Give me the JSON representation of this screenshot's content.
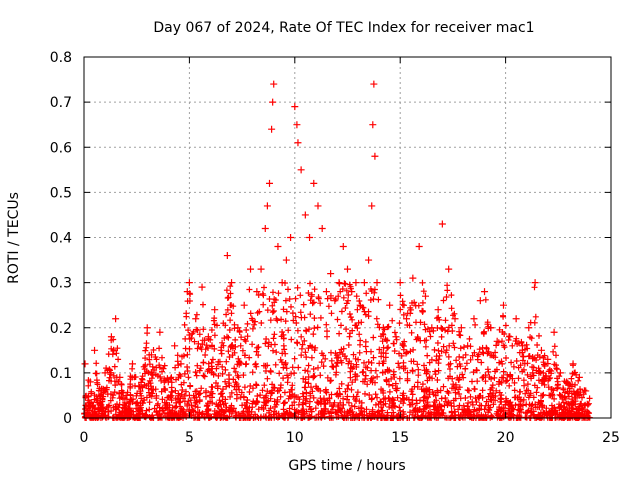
{
  "chart_data": {
    "type": "scatter",
    "title": "Day 067 of 2024, Rate Of TEC Index for receiver mac1",
    "xlabel": "GPS time / hours",
    "ylabel": "ROTI / TECUs",
    "xlim": [
      0,
      25
    ],
    "ylim": [
      0,
      0.8
    ],
    "xticks": [
      0,
      5,
      10,
      15,
      20,
      25
    ],
    "yticks": [
      0,
      0.1,
      0.2,
      0.3,
      0.4,
      0.5,
      0.6,
      0.7,
      0.8
    ],
    "xtick_labels": [
      "0",
      "5",
      "10",
      "15",
      "20",
      "25"
    ],
    "ytick_labels": [
      "0",
      "0.1",
      "0.2",
      "0.3",
      "0.4",
      "0.5",
      "0.6",
      "0.7",
      "0.8"
    ],
    "grid": true,
    "marker": "+",
    "color": "#ff0000",
    "x_range_of_data": [
      0,
      24
    ],
    "series": [
      {
        "name": "ROTI",
        "points": [
          [
            0.05,
            0.12
          ],
          [
            0.3,
            0.08
          ],
          [
            0.5,
            0.15
          ],
          [
            0.8,
            0.06
          ],
          [
            1.0,
            0.1
          ],
          [
            1.3,
            0.18
          ],
          [
            1.5,
            0.22
          ],
          [
            1.7,
            0.09
          ],
          [
            2.0,
            0.05
          ],
          [
            2.3,
            0.12
          ],
          [
            2.6,
            0.07
          ],
          [
            3.0,
            0.2
          ],
          [
            3.2,
            0.14
          ],
          [
            3.6,
            0.19
          ],
          [
            4.0,
            0.08
          ],
          [
            4.3,
            0.16
          ],
          [
            4.6,
            0.12
          ],
          [
            4.9,
            0.28
          ],
          [
            5.0,
            0.3
          ],
          [
            5.3,
            0.22
          ],
          [
            5.6,
            0.29
          ],
          [
            5.9,
            0.18
          ],
          [
            6.2,
            0.24
          ],
          [
            6.5,
            0.15
          ],
          [
            6.8,
            0.36
          ],
          [
            7.0,
            0.3
          ],
          [
            7.3,
            0.2
          ],
          [
            7.6,
            0.25
          ],
          [
            7.9,
            0.33
          ],
          [
            8.2,
            0.28
          ],
          [
            8.4,
            0.33
          ],
          [
            8.6,
            0.42
          ],
          [
            8.7,
            0.47
          ],
          [
            8.8,
            0.52
          ],
          [
            8.9,
            0.64
          ],
          [
            8.95,
            0.7
          ],
          [
            9.0,
            0.74
          ],
          [
            9.2,
            0.38
          ],
          [
            9.4,
            0.3
          ],
          [
            9.6,
            0.35
          ],
          [
            9.8,
            0.4
          ],
          [
            10.0,
            0.69
          ],
          [
            10.1,
            0.65
          ],
          [
            10.15,
            0.61
          ],
          [
            10.3,
            0.55
          ],
          [
            10.5,
            0.45
          ],
          [
            10.7,
            0.4
          ],
          [
            10.9,
            0.52
          ],
          [
            11.1,
            0.47
          ],
          [
            11.3,
            0.42
          ],
          [
            11.5,
            0.28
          ],
          [
            11.7,
            0.32
          ],
          [
            11.9,
            0.26
          ],
          [
            12.1,
            0.3
          ],
          [
            12.3,
            0.38
          ],
          [
            12.5,
            0.33
          ],
          [
            12.7,
            0.28
          ],
          [
            12.9,
            0.3
          ],
          [
            13.1,
            0.25
          ],
          [
            13.3,
            0.3
          ],
          [
            13.5,
            0.35
          ],
          [
            13.65,
            0.47
          ],
          [
            13.7,
            0.65
          ],
          [
            13.75,
            0.74
          ],
          [
            13.8,
            0.58
          ],
          [
            13.9,
            0.3
          ],
          [
            14.2,
            0.2
          ],
          [
            14.5,
            0.25
          ],
          [
            14.8,
            0.18
          ],
          [
            15.0,
            0.3
          ],
          [
            15.3,
            0.22
          ],
          [
            15.6,
            0.31
          ],
          [
            15.9,
            0.38
          ],
          [
            16.2,
            0.27
          ],
          [
            16.5,
            0.2
          ],
          [
            16.8,
            0.24
          ],
          [
            17.0,
            0.43
          ],
          [
            17.3,
            0.33
          ],
          [
            17.6,
            0.22
          ],
          [
            17.9,
            0.2
          ],
          [
            18.2,
            0.16
          ],
          [
            18.5,
            0.22
          ],
          [
            18.8,
            0.26
          ],
          [
            19.0,
            0.28
          ],
          [
            19.3,
            0.2
          ],
          [
            19.6,
            0.17
          ],
          [
            19.9,
            0.25
          ],
          [
            20.2,
            0.18
          ],
          [
            20.5,
            0.22
          ],
          [
            20.8,
            0.16
          ],
          [
            21.1,
            0.2
          ],
          [
            21.4,
            0.3
          ],
          [
            21.7,
            0.15
          ],
          [
            22.0,
            0.13
          ],
          [
            22.3,
            0.19
          ],
          [
            22.6,
            0.1
          ],
          [
            22.9,
            0.08
          ],
          [
            23.2,
            0.12
          ],
          [
            23.5,
            0.09
          ],
          [
            23.8,
            0.06
          ]
        ]
      }
    ]
  }
}
